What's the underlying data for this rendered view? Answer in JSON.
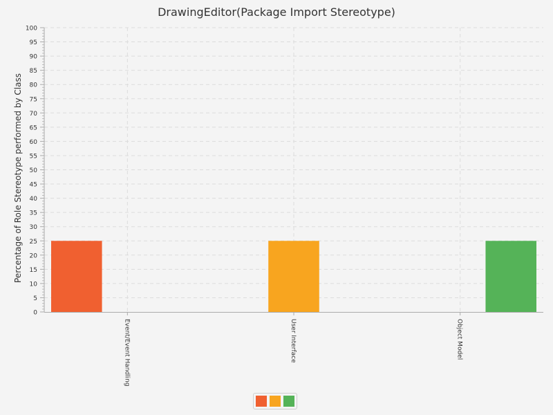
{
  "chart_data": {
    "type": "bar",
    "title": "DrawingEditor(Package Import Stereotype)",
    "xlabel": "",
    "ylabel": "Percentage of Role Stereotype performed by Class",
    "categories": [
      "Event/Event Handling",
      "User Interface",
      "Object Model"
    ],
    "series": [
      {
        "values": [
          25,
          0,
          0
        ],
        "color": "#f06030"
      },
      {
        "values": [
          0,
          25,
          0
        ],
        "color": "#f8a51f"
      },
      {
        "values": [
          0,
          0,
          25
        ],
        "color": "#55b358"
      }
    ],
    "ylim": [
      0,
      100
    ],
    "ytick_step": 5,
    "grid": true,
    "legend": "bottom-center"
  }
}
